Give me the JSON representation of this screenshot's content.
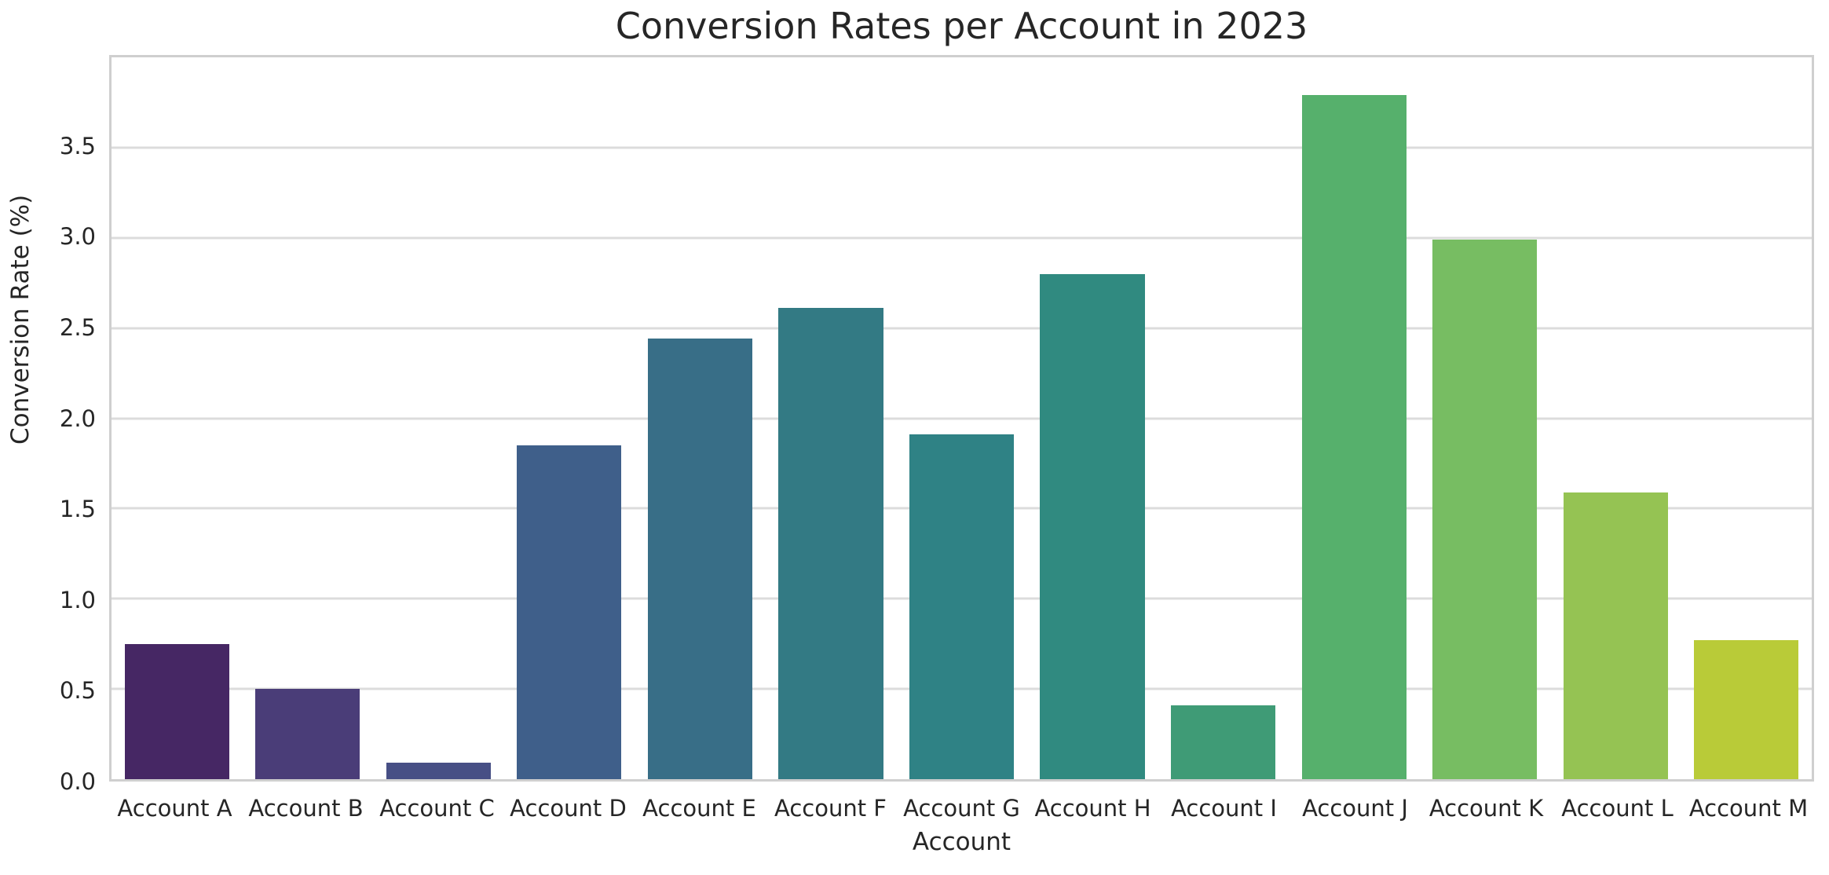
{
  "figure": {
    "background_color": "#ffffff",
    "text_color": "#262626",
    "grid_color": "#dcdcdc",
    "spine_color": "#cfcfcf"
  },
  "chart_data": {
    "type": "bar",
    "title": "Conversion Rates per Account in 2023",
    "xlabel": "Account",
    "ylabel": "Conversion Rate (%)",
    "categories": [
      "Account A",
      "Account B",
      "Account C",
      "Account D",
      "Account E",
      "Account F",
      "Account G",
      "Account H",
      "Account I",
      "Account J",
      "Account K",
      "Account L",
      "Account M"
    ],
    "values": [
      0.75,
      0.5,
      0.09,
      1.85,
      2.44,
      2.61,
      1.91,
      2.8,
      0.41,
      3.79,
      2.99,
      1.59,
      0.77
    ],
    "bar_colors": [
      "#462764",
      "#4a3d78",
      "#474f85",
      "#3f5f8a",
      "#386e87",
      "#337a84",
      "#2f8285",
      "#308a80",
      "#3f9b76",
      "#56b06c",
      "#77bd62",
      "#95c353",
      "#b9cb38"
    ],
    "ylim": [
      0,
      4.0
    ],
    "yticks": [
      0.0,
      0.5,
      1.0,
      1.5,
      2.0,
      2.5,
      3.0,
      3.5
    ],
    "ytick_labels": [
      "0.0",
      "0.5",
      "1.0",
      "1.5",
      "2.0",
      "2.5",
      "3.0",
      "3.5"
    ],
    "grid": "horizontal",
    "legend": "none",
    "bar_width_fraction": 0.8,
    "palette": "viridis (desaturated)"
  }
}
